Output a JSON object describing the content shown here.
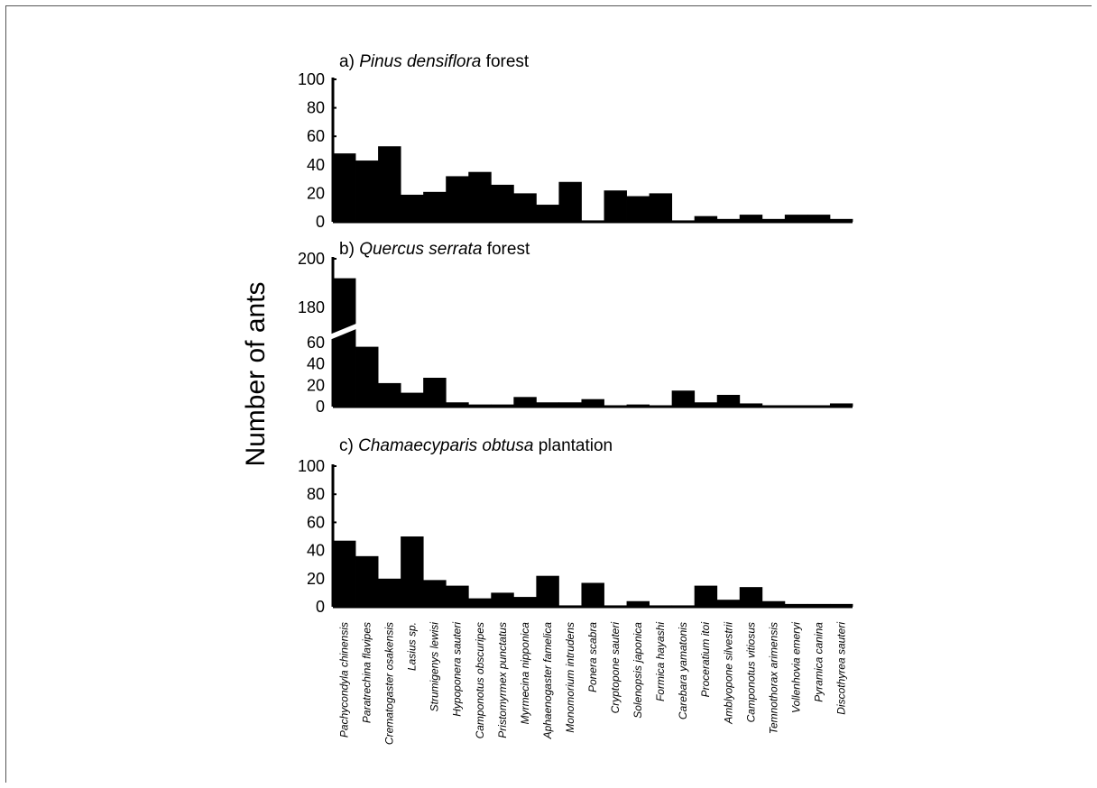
{
  "chart_data": {
    "type": "bar",
    "ylabel": "Number of ants",
    "categories": [
      "Pachycondyla chinensis",
      "Paratrechina flavipes",
      "Crematogaster osakensis",
      "Lasius sp.",
      "Strumigenys lewisi",
      "Hypoponera sauteri",
      "Camponotus obscuripes",
      "Pristomyrmex punctatus",
      "Myrmecina nipponica",
      "Aphaenogaster famelica",
      "Monomorium intrudens",
      "Ponera scabra",
      "Cryptopone sauteri",
      "Solenopsis japonica",
      "Formica hayashi",
      "Carebara yamatonis",
      "Proceratium itoi",
      "Amblyopone silvestrii",
      "Camponotus vitiosus",
      "Temnothorax arimensis",
      "Vollenhovia emeryi",
      "Pyramica canina",
      "Discothyrea sauteri"
    ],
    "panels": [
      {
        "key": "a",
        "title_prefix": "a) ",
        "title_italic": "Pinus densiflora",
        "title_suffix": " forest",
        "ylim": [
          0,
          100
        ],
        "yticks": [
          0,
          20,
          40,
          60,
          80,
          100
        ],
        "values": [
          48,
          43,
          53,
          19,
          21,
          32,
          35,
          26,
          20,
          12,
          28,
          1,
          22,
          18,
          20,
          1,
          4,
          2,
          5,
          2,
          5,
          5,
          2
        ]
      },
      {
        "key": "b",
        "title_prefix": "b) ",
        "title_italic": "Quercus serrata",
        "title_suffix": " forest",
        "ylim": [
          0,
          200
        ],
        "axis_break": [
          70,
          170
        ],
        "yticks": [
          0,
          20,
          40,
          60,
          180,
          200
        ],
        "values": [
          192,
          56,
          22,
          13,
          27,
          4,
          2,
          2,
          9,
          4,
          4,
          7,
          1,
          2,
          1,
          15,
          4,
          11,
          3,
          1,
          1,
          1,
          3
        ]
      },
      {
        "key": "c",
        "title_prefix": "c) ",
        "title_italic": "Chamaecyparis obtusa",
        "title_suffix": " plantation",
        "ylim": [
          0,
          100
        ],
        "yticks": [
          0,
          20,
          40,
          60,
          80,
          100
        ],
        "values": [
          47,
          36,
          20,
          50,
          19,
          15,
          6,
          10,
          7,
          22,
          1,
          17,
          1,
          4,
          1,
          1,
          15,
          5,
          14,
          4,
          2,
          2,
          2
        ]
      }
    ]
  }
}
